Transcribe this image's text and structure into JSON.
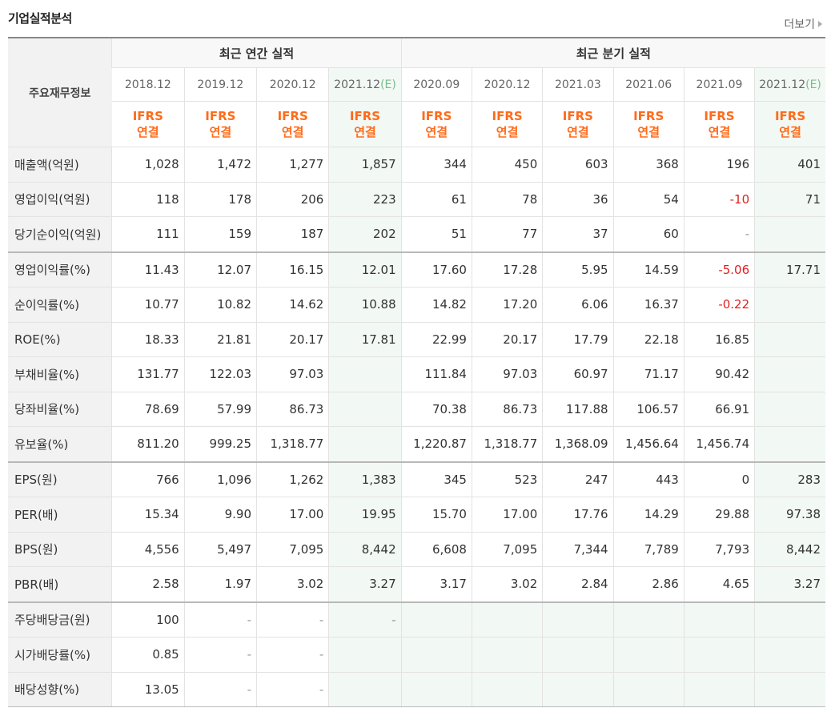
{
  "header": {
    "title": "기업실적분석",
    "more_label": "더보기"
  },
  "table": {
    "row_header": "주요재무정보",
    "group_annual": "최근 연간 실적",
    "group_quarter": "최근 분기 실적",
    "periods": [
      {
        "label": "2018.12",
        "e": ""
      },
      {
        "label": "2019.12",
        "e": ""
      },
      {
        "label": "2020.12",
        "e": ""
      },
      {
        "label": "2021.12",
        "e": "(E)"
      },
      {
        "label": "2020.09",
        "e": ""
      },
      {
        "label": "2020.12",
        "e": ""
      },
      {
        "label": "2021.03",
        "e": ""
      },
      {
        "label": "2021.06",
        "e": ""
      },
      {
        "label": "2021.09",
        "e": ""
      },
      {
        "label": "2021.12",
        "e": "(E)"
      }
    ],
    "ifrs": "IFRS",
    "consolidated": "연결",
    "rows": [
      {
        "label": "매출액(억원)",
        "values": [
          "1,028",
          "1,472",
          "1,277",
          "1,857",
          "344",
          "450",
          "603",
          "368",
          "196",
          "401"
        ]
      },
      {
        "label": "영업이익(억원)",
        "values": [
          "118",
          "178",
          "206",
          "223",
          "61",
          "78",
          "36",
          "54",
          "-10",
          "71"
        ]
      },
      {
        "label": "당기순이익(억원)",
        "values": [
          "111",
          "159",
          "187",
          "202",
          "51",
          "77",
          "37",
          "60",
          "-",
          ""
        ]
      },
      {
        "label": "영업이익률(%)",
        "values": [
          "11.43",
          "12.07",
          "16.15",
          "12.01",
          "17.60",
          "17.28",
          "5.95",
          "14.59",
          "-5.06",
          "17.71"
        ]
      },
      {
        "label": "순이익률(%)",
        "values": [
          "10.77",
          "10.82",
          "14.62",
          "10.88",
          "14.82",
          "17.20",
          "6.06",
          "16.37",
          "-0.22",
          ""
        ]
      },
      {
        "label": "ROE(%)",
        "values": [
          "18.33",
          "21.81",
          "20.17",
          "17.81",
          "22.99",
          "20.17",
          "17.79",
          "22.18",
          "16.85",
          ""
        ]
      },
      {
        "label": "부채비율(%)",
        "values": [
          "131.77",
          "122.03",
          "97.03",
          "",
          "111.84",
          "97.03",
          "60.97",
          "71.17",
          "90.42",
          ""
        ]
      },
      {
        "label": "당좌비율(%)",
        "values": [
          "78.69",
          "57.99",
          "86.73",
          "",
          "70.38",
          "86.73",
          "117.88",
          "106.57",
          "66.91",
          ""
        ]
      },
      {
        "label": "유보율(%)",
        "values": [
          "811.20",
          "999.25",
          "1,318.77",
          "",
          "1,220.87",
          "1,318.77",
          "1,368.09",
          "1,456.64",
          "1,456.74",
          ""
        ]
      },
      {
        "label": "EPS(원)",
        "values": [
          "766",
          "1,096",
          "1,262",
          "1,383",
          "345",
          "523",
          "247",
          "443",
          "0",
          "283"
        ]
      },
      {
        "label": "PER(배)",
        "values": [
          "15.34",
          "9.90",
          "17.00",
          "19.95",
          "15.70",
          "17.00",
          "17.76",
          "14.29",
          "29.88",
          "97.38"
        ]
      },
      {
        "label": "BPS(원)",
        "values": [
          "4,556",
          "5,497",
          "7,095",
          "8,442",
          "6,608",
          "7,095",
          "7,344",
          "7,789",
          "7,793",
          "8,442"
        ]
      },
      {
        "label": "PBR(배)",
        "values": [
          "2.58",
          "1.97",
          "3.02",
          "3.27",
          "3.17",
          "3.02",
          "2.84",
          "2.86",
          "4.65",
          "3.27"
        ]
      },
      {
        "label": "주당배당금(원)",
        "values": [
          "100",
          "-",
          "-",
          "-",
          "",
          "",
          "",
          "",
          "",
          ""
        ]
      },
      {
        "label": "시가배당률(%)",
        "values": [
          "0.85",
          "-",
          "-",
          "",
          "",
          "",
          "",
          "",
          "",
          ""
        ]
      },
      {
        "label": "배당성향(%)",
        "values": [
          "13.05",
          "-",
          "-",
          "",
          "",
          "",
          "",
          "",
          "",
          ""
        ]
      }
    ]
  },
  "colors": {
    "ifrs_orange": "#ff6b1a",
    "negative_red": "#e02020",
    "estimate_bg": "#f2f8f4",
    "label_bg": "#f2f2f2"
  }
}
